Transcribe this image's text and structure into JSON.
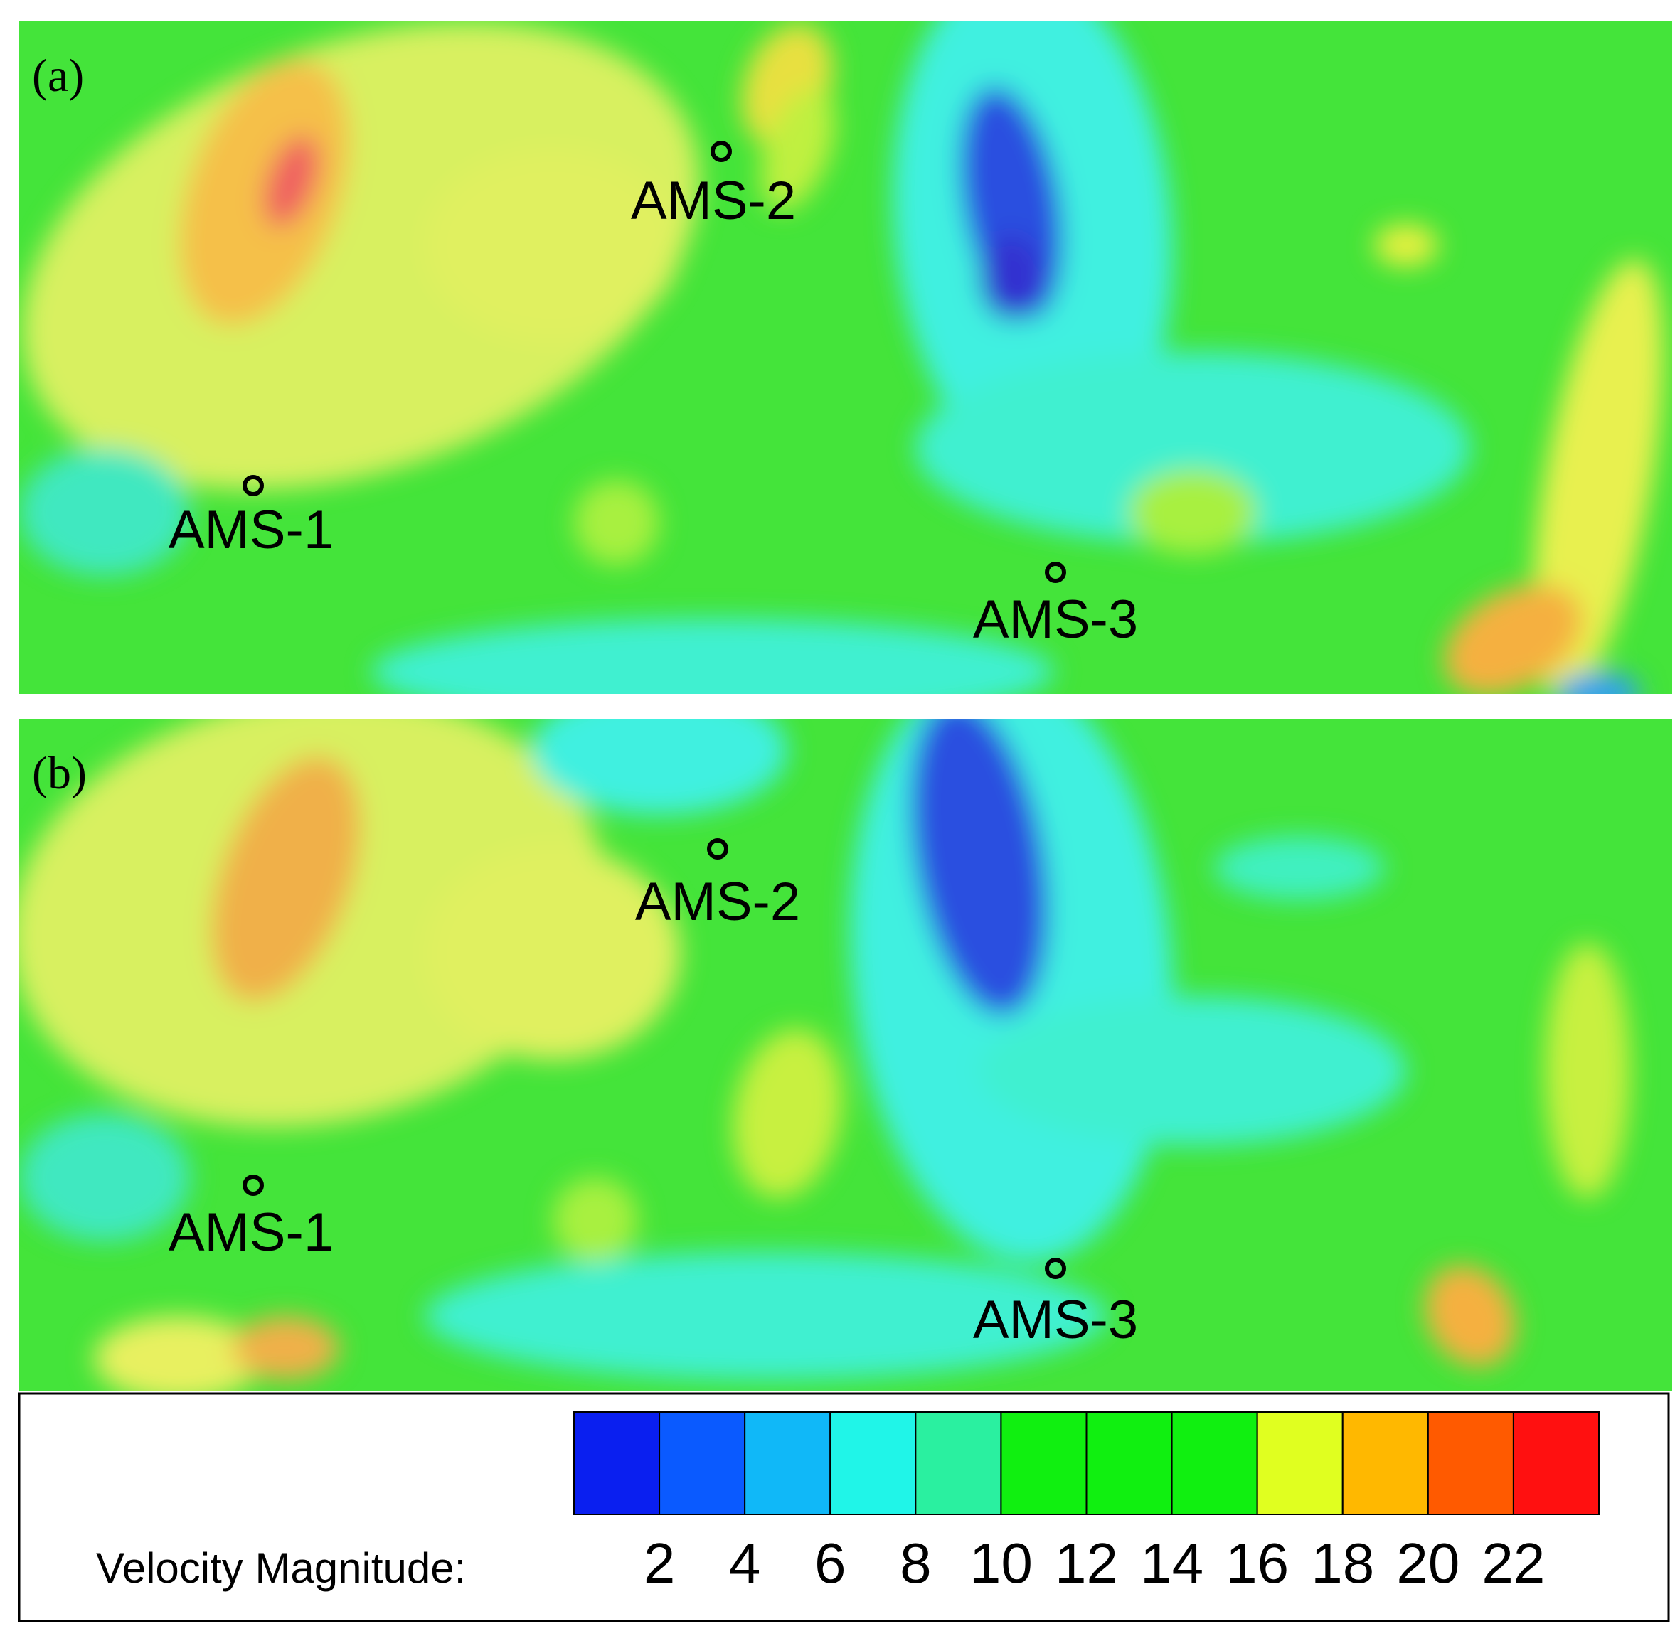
{
  "panels": [
    {
      "label": "(a)",
      "stations": [
        "AMS-1",
        "AMS-2",
        "AMS-3"
      ]
    },
    {
      "label": "(b)",
      "stations": [
        "AMS-1",
        "AMS-2",
        "AMS-3"
      ]
    }
  ],
  "colorbar": {
    "label": "Velocity Magnitude:",
    "ticks": [
      2,
      4,
      6,
      8,
      10,
      12,
      14,
      16,
      18,
      20,
      22
    ],
    "colors": [
      "#0a1ff0",
      "#0a5aff",
      "#10b8f8",
      "#20f5e8",
      "#2af0a0",
      "#10f010",
      "#10f010",
      "#10f010",
      "#e0ff20",
      "#ffb800",
      "#ff5a00",
      "#ff1010"
    ]
  }
}
